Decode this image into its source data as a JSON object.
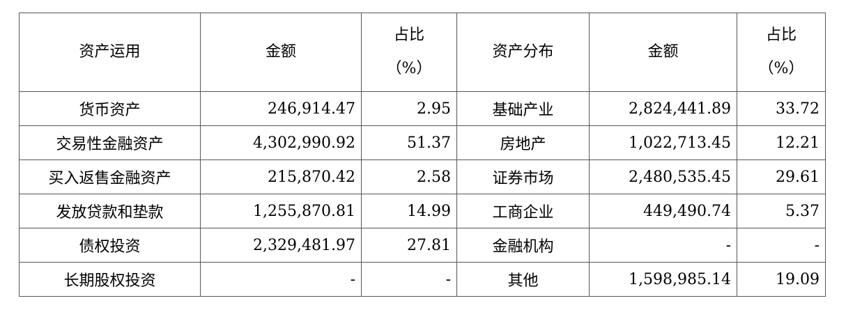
{
  "headers": {
    "usage": "资产运用",
    "amount1": "金额",
    "ratio1_line1": "占比",
    "ratio1_line2": "（%）",
    "distribution": "资产分布",
    "amount2": "金额",
    "ratio2_line1": "占比",
    "ratio2_line2": "（%）"
  },
  "rows": [
    {
      "usage": "货币资产",
      "amount1": "246,914.47",
      "ratio1": "2.95",
      "distribution": "基础产业",
      "amount2": "2,824,441.89",
      "ratio2": "33.72"
    },
    {
      "usage": "交易性金融资产",
      "amount1": "4,302,990.92",
      "ratio1": "51.37",
      "distribution": "房地产",
      "amount2": "1,022,713.45",
      "ratio2": "12.21"
    },
    {
      "usage": "买入返售金融资产",
      "amount1": "215,870.42",
      "ratio1": "2.58",
      "distribution": "证券市场",
      "amount2": "2,480,535.45",
      "ratio2": "29.61"
    },
    {
      "usage": "发放贷款和垫款",
      "amount1": "1,255,870.81",
      "ratio1": "14.99",
      "distribution": "工商企业",
      "amount2": "449,490.74",
      "ratio2": "5.37"
    },
    {
      "usage": "债权投资",
      "amount1": "2,329,481.97",
      "ratio1": "27.81",
      "distribution": "金融机构",
      "amount2": "-",
      "ratio2": "-"
    },
    {
      "usage": "长期股权投资",
      "amount1": "-",
      "ratio1": "-",
      "distribution": "其他",
      "amount2": "1,598,985.14",
      "ratio2": "19.09"
    }
  ]
}
